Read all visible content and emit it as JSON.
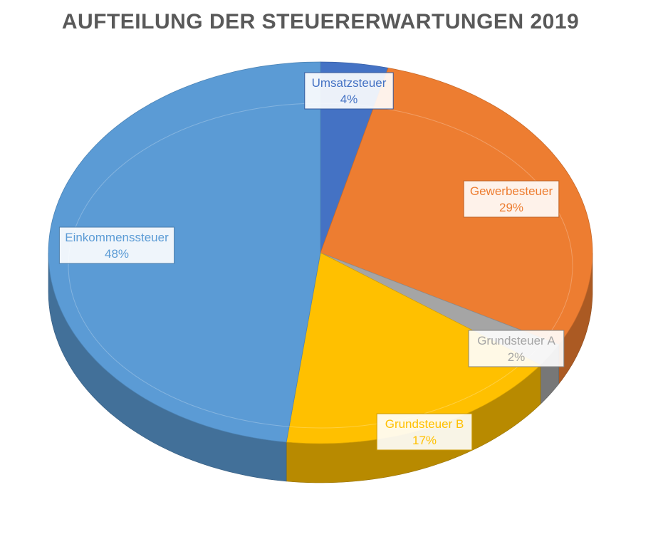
{
  "chart_data": {
    "type": "pie",
    "title": "AUFTEILUNG DER STEUERERWARTUNGEN 2019",
    "slices": [
      {
        "label": "Umsatzsteuer",
        "value": 4,
        "value_label": "4%",
        "color": "#4472C4",
        "label_color": "#4472C4"
      },
      {
        "label": "Gewerbesteuer",
        "value": 29,
        "value_label": "29%",
        "color": "#ED7D31",
        "label_color": "#ED7D31"
      },
      {
        "label": "Grundsteuer A",
        "value": 2,
        "value_label": "2%",
        "color": "#A5A5A5",
        "label_color": "#A5A5A5"
      },
      {
        "label": "Grundsteuer B",
        "value": 17,
        "value_label": "17%",
        "color": "#FFC000",
        "label_color": "#FFC000"
      },
      {
        "label": "Einkommenssteuer",
        "value": 48,
        "value_label": "48%",
        "color": "#5B9BD5",
        "label_color": "#5B9BD5"
      }
    ],
    "style": "3d-pie",
    "legend": "none"
  }
}
